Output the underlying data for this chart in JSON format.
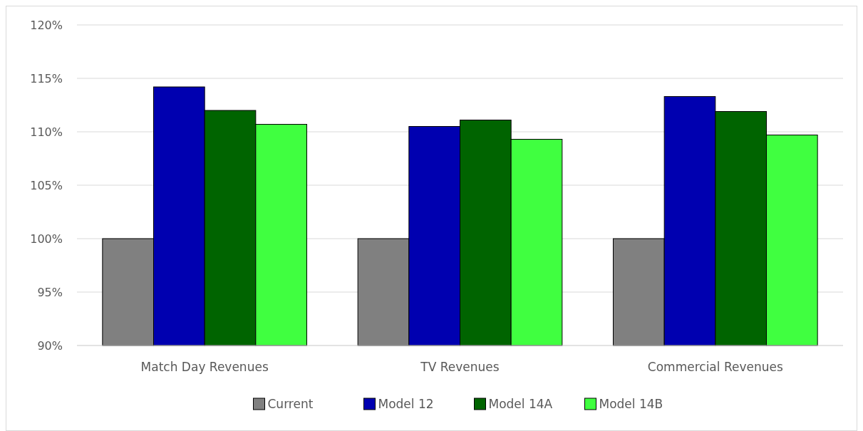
{
  "chart_data": {
    "type": "bar",
    "categories": [
      "Match Day Revenues",
      "TV Revenues",
      "Commercial Revenues"
    ],
    "series": [
      {
        "name": "Current",
        "color": "#808080",
        "values": [
          100,
          100,
          100
        ]
      },
      {
        "name": "Model 12",
        "color": "#0000b0",
        "values": [
          114.2,
          110.5,
          113.3
        ]
      },
      {
        "name": "Model 14A",
        "color": "#006400",
        "values": [
          112.0,
          111.1,
          111.9
        ]
      },
      {
        "name": "Model 14B",
        "color": "#40ff40",
        "values": [
          110.7,
          109.3,
          109.7
        ]
      }
    ],
    "ylim": [
      90,
      120
    ],
    "yticks": [
      {
        "value": 90,
        "label": "90%"
      },
      {
        "value": 95,
        "label": "95%"
      },
      {
        "value": 100,
        "label": "100%"
      },
      {
        "value": 105,
        "label": "105%"
      },
      {
        "value": 110,
        "label": "110%"
      },
      {
        "value": 115,
        "label": "115%"
      },
      {
        "value": 120,
        "label": "120%"
      }
    ],
    "grid": "y",
    "legend": "bottom"
  }
}
